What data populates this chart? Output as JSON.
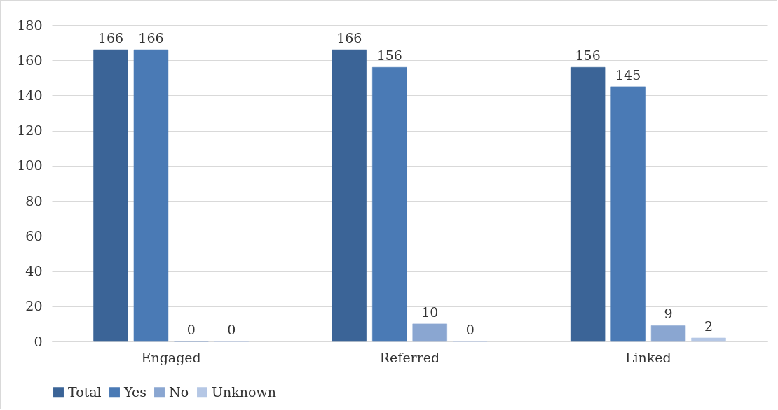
{
  "chart_data": {
    "type": "bar",
    "categories": [
      "Engaged",
      "Referred",
      "Linked"
    ],
    "series": [
      {
        "name": "Total",
        "color": "#3b6497",
        "values": [
          166,
          166,
          156
        ]
      },
      {
        "name": "Yes",
        "color": "#4a7ab5",
        "values": [
          166,
          156,
          145
        ]
      },
      {
        "name": "No",
        "color": "#8aa6d1",
        "values": [
          0,
          10,
          9
        ]
      },
      {
        "name": "Unknown",
        "color": "#b5c7e5",
        "values": [
          0,
          0,
          2
        ]
      }
    ],
    "ylim": [
      0,
      180
    ],
    "yticks": [
      0,
      20,
      40,
      60,
      80,
      100,
      120,
      140,
      160,
      180
    ],
    "grid": "y",
    "legend": "bottom",
    "data_labels": true
  }
}
